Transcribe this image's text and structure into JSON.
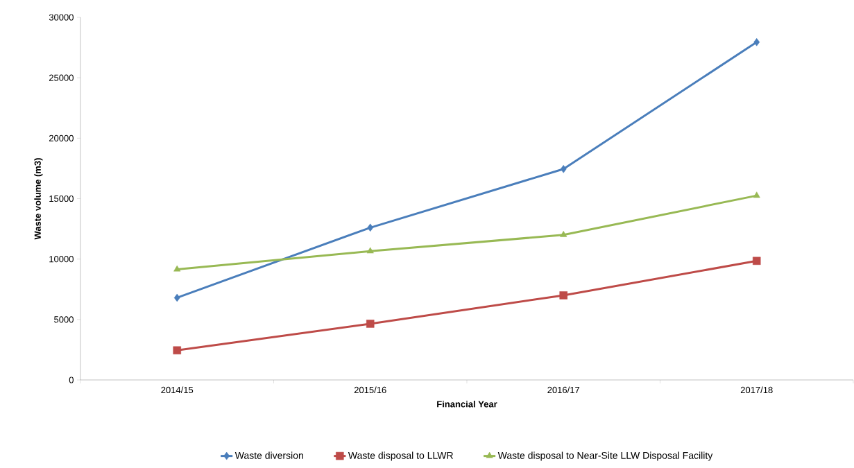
{
  "chart_data": {
    "type": "line",
    "xlabel": "Financial Year",
    "ylabel": "Waste volume (m3)",
    "categories": [
      "2014/15",
      "2015/16",
      "2016/17",
      "2017/18"
    ],
    "series": [
      {
        "name": "Waste diversion",
        "color": "#4a7ebb",
        "marker": "diamond",
        "values": [
          6800,
          12600,
          17450,
          27950
        ]
      },
      {
        "name": "Waste disposal to LLWR",
        "color": "#be4b48",
        "marker": "square",
        "values": [
          2450,
          4650,
          7000,
          9850
        ]
      },
      {
        "name": "Waste disposal to Near-Site LLW Disposal Facility",
        "color": "#98b954",
        "marker": "triangle",
        "values": [
          9150,
          10650,
          12000,
          15250
        ]
      }
    ],
    "ylim": [
      0,
      30000
    ],
    "yticks": [
      0,
      5000,
      10000,
      15000,
      20000,
      25000,
      30000
    ],
    "grid": false,
    "legend": "bottom",
    "line_style": "solid"
  }
}
